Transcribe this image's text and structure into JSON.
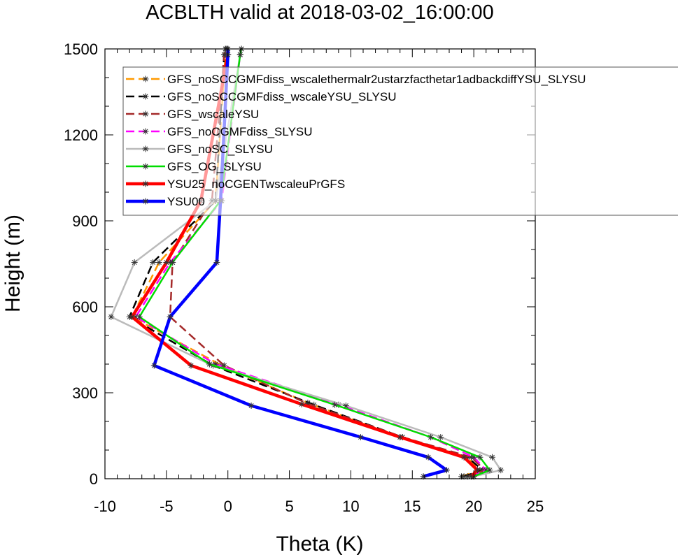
{
  "chart_data": {
    "type": "line",
    "title": "ACBLTH valid at 2018-03-02_16:00:00",
    "xlabel": "Theta (K)",
    "ylabel": "Height (m)",
    "xlim": [
      -10,
      25
    ],
    "ylim": [
      0,
      1500
    ],
    "xticks": [
      -10,
      -5,
      0,
      5,
      10,
      15,
      20,
      25
    ],
    "yticks": [
      0,
      300,
      600,
      900,
      1200,
      1500
    ],
    "xticklabels": [
      "-10",
      "-5",
      "0",
      "5",
      "10",
      "15",
      "20",
      "25"
    ],
    "yticklabels": [
      "0",
      "300",
      "600",
      "900",
      "1200",
      "1500"
    ],
    "grid": false,
    "legend": "upper-left inside plot",
    "series": [
      {
        "name": "GFS_noSCCGMFdiss_wscalethermalr2ustarzfacthetar1adbackdiffYSU_SLYSU",
        "color": "#ff9900",
        "dash": "dashed",
        "width": 2.5,
        "points": [
          [
            19.0,
            8
          ],
          [
            20.5,
            30
          ],
          [
            19.5,
            75
          ],
          [
            14.0,
            145
          ],
          [
            6.5,
            265
          ],
          [
            -0.5,
            395
          ],
          [
            -7.8,
            565
          ],
          [
            -5.6,
            755
          ],
          [
            -1.0,
            970
          ],
          [
            -0.2,
            1480
          ],
          [
            -0.1,
            1500
          ]
        ]
      },
      {
        "name": "GFS_noSCCGMFdiss_wscaleYSU_SLYSU",
        "color": "#000000",
        "dash": "dashed",
        "width": 2.5,
        "points": [
          [
            19.2,
            8
          ],
          [
            20.7,
            30
          ],
          [
            19.5,
            75
          ],
          [
            14.2,
            145
          ],
          [
            7.0,
            258
          ],
          [
            -1.2,
            395
          ],
          [
            -8.0,
            565
          ],
          [
            -6.1,
            755
          ],
          [
            -1.0,
            970
          ],
          [
            -0.3,
            1480
          ],
          [
            -0.2,
            1500
          ]
        ]
      },
      {
        "name": "GFS_wscaleYSU",
        "color": "#a52a2a",
        "dash": "dashed",
        "width": 2.5,
        "points": [
          [
            19.5,
            8
          ],
          [
            20.9,
            30
          ],
          [
            19.8,
            75
          ],
          [
            14.2,
            145
          ],
          [
            6.5,
            262
          ],
          [
            -0.3,
            395
          ],
          [
            -4.7,
            565
          ],
          [
            -4.5,
            755
          ],
          [
            -1.3,
            970
          ],
          [
            -0.3,
            1480
          ],
          [
            -0.2,
            1500
          ]
        ]
      },
      {
        "name": "GFS_noCGMFdiss_SLYSU",
        "color": "#ff00ff",
        "dash": "dashed",
        "width": 2.5,
        "points": [
          [
            19.8,
            8
          ],
          [
            21.0,
            30
          ],
          [
            20.0,
            75
          ],
          [
            16.5,
            145
          ],
          [
            9.0,
            258
          ],
          [
            -1.0,
            400
          ],
          [
            -7.5,
            565
          ],
          [
            -4.7,
            755
          ],
          [
            -0.5,
            970
          ],
          [
            1.0,
            1480
          ],
          [
            1.1,
            1500
          ]
        ]
      },
      {
        "name": "GFS_noSC_SLYSU",
        "color": "#bbbbbb",
        "dash": "solid",
        "width": 2.5,
        "points": [
          [
            20.0,
            8
          ],
          [
            22.2,
            30
          ],
          [
            21.5,
            75
          ],
          [
            17.3,
            145
          ],
          [
            9.6,
            255
          ],
          [
            -1.5,
            400
          ],
          [
            -9.5,
            565
          ],
          [
            -7.6,
            755
          ],
          [
            -1.0,
            970
          ],
          [
            1.0,
            1480
          ],
          [
            1.1,
            1500
          ]
        ]
      },
      {
        "name": "GFS_OG_SLYSU",
        "color": "#00dd00",
        "dash": "solid",
        "width": 2.5,
        "points": [
          [
            20.0,
            8
          ],
          [
            21.3,
            30
          ],
          [
            20.5,
            75
          ],
          [
            16.5,
            145
          ],
          [
            8.7,
            258
          ],
          [
            -1.5,
            400
          ],
          [
            -7.2,
            565
          ],
          [
            -4.5,
            755
          ],
          [
            -0.6,
            970
          ],
          [
            1.0,
            1480
          ],
          [
            1.1,
            1500
          ]
        ]
      },
      {
        "name": "YSU25_noCGENTwscaleuPrGFS",
        "color": "#ff0000",
        "dash": "solid",
        "width": 4.5,
        "points": [
          [
            19.8,
            8
          ],
          [
            20.3,
            30
          ],
          [
            19.2,
            75
          ],
          [
            14.0,
            145
          ],
          [
            6.0,
            260
          ],
          [
            -3.0,
            395
          ],
          [
            -7.8,
            565
          ],
          [
            -5.0,
            755
          ],
          [
            -2.2,
            970
          ],
          [
            0.0,
            1480
          ],
          [
            0.0,
            1500
          ]
        ]
      },
      {
        "name": "YSU00",
        "color": "#0000ff",
        "dash": "solid",
        "width": 4.5,
        "points": [
          [
            15.9,
            8
          ],
          [
            17.8,
            30
          ],
          [
            16.3,
            75
          ],
          [
            10.8,
            145
          ],
          [
            1.9,
            255
          ],
          [
            -6.0,
            395
          ],
          [
            -4.7,
            565
          ],
          [
            -0.9,
            755
          ],
          [
            -0.6,
            970
          ],
          [
            0.0,
            1480
          ],
          [
            0.0,
            1500
          ]
        ]
      }
    ]
  }
}
